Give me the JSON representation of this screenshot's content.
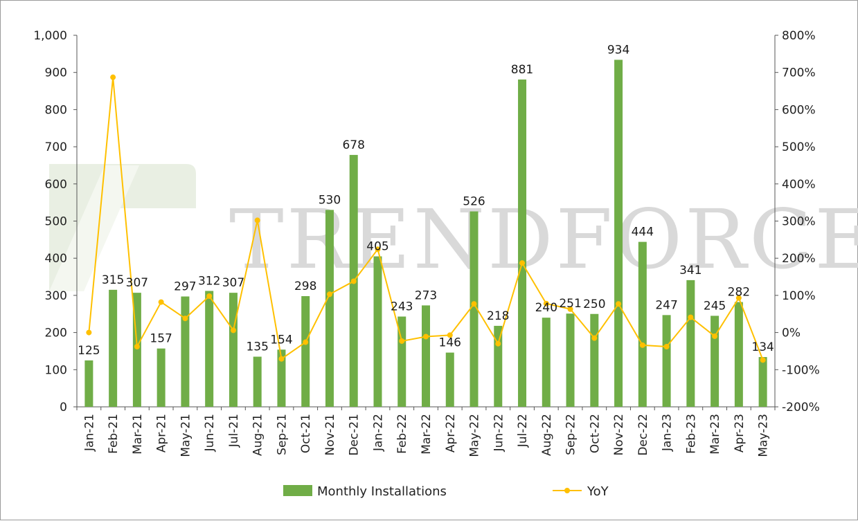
{
  "chart_data": {
    "type": "bar",
    "title": "",
    "xlabel": "",
    "ylabel": "",
    "categories": [
      "Jan-21",
      "Feb-21",
      "Mar-21",
      "Apr-21",
      "May-21",
      "Jun-21",
      "Jul-21",
      "Aug-21",
      "Sep-21",
      "Oct-21",
      "Nov-21",
      "Dec-21",
      "Jan-22",
      "Feb-22",
      "Mar-22",
      "Apr-22",
      "May-22",
      "Jun-22",
      "Jul-22",
      "Aug-22",
      "Sep-22",
      "Oct-22",
      "Nov-22",
      "Dec-22",
      "Jan-23",
      "Feb-23",
      "Mar-23",
      "Apr-23",
      "May-23"
    ],
    "series": [
      {
        "name": "Monthly Installations",
        "type": "bar",
        "axis": "left",
        "color": "#70ad47",
        "values": [
          125,
          315,
          307,
          157,
          297,
          312,
          307,
          135,
          154,
          298,
          530,
          678,
          405,
          243,
          273,
          146,
          526,
          218,
          881,
          240,
          251,
          250,
          934,
          444,
          247,
          341,
          245,
          282,
          134
        ],
        "labels": [
          "125",
          "315",
          "307",
          "157",
          "297",
          "312",
          "307",
          "135",
          "154",
          "298",
          "530",
          "678",
          "405",
          "243",
          "273",
          "146",
          "526",
          "218",
          "881",
          "240",
          "251",
          "250",
          "934",
          "444",
          "247",
          "341",
          "245",
          "282",
          "134"
        ]
      },
      {
        "name": "YoY",
        "type": "line",
        "axis": "right",
        "color": "#ffc000",
        "unit": "%",
        "values": [
          0,
          687,
          -38,
          82,
          38,
          98,
          6,
          302,
          -71,
          -26,
          103,
          138,
          224,
          -23,
          -11,
          -7,
          77,
          -30,
          187,
          78,
          63,
          -15,
          77,
          -34,
          -38,
          41,
          -10,
          93,
          -74
        ]
      }
    ],
    "y_left": {
      "min": 0,
      "max": 1000,
      "ticks": [
        0,
        100,
        200,
        300,
        400,
        500,
        600,
        700,
        800,
        900,
        1000
      ],
      "tick_labels": [
        "0",
        "100",
        "200",
        "300",
        "400",
        "500",
        "600",
        "700",
        "800",
        "900",
        "1,000"
      ]
    },
    "y_right": {
      "min": -200,
      "max": 800,
      "ticks": [
        -200,
        -100,
        0,
        100,
        200,
        300,
        400,
        500,
        600,
        700,
        800
      ],
      "tick_labels": [
        "-200%",
        "-100%",
        "0%",
        "100%",
        "200%",
        "300%",
        "400%",
        "500%",
        "600%",
        "700%",
        "800%"
      ]
    },
    "grid": false,
    "legend_position": "bottom-center",
    "watermark": "TRENDFORCE"
  }
}
